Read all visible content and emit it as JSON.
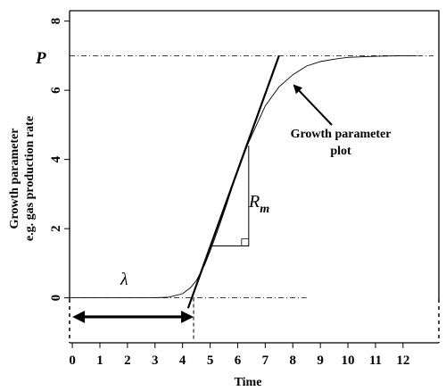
{
  "chart_data": {
    "type": "line",
    "xlabel": "Time",
    "ylabel_line1": "Growth parameter",
    "ylabel_line2": "e.g. gas production rate",
    "xlim": [
      -0.1,
      13.3
    ],
    "ylim": [
      -1.3,
      8.3
    ],
    "xticks": [
      0,
      1,
      2,
      3,
      4,
      5,
      6,
      7,
      8,
      9,
      10,
      11,
      12
    ],
    "yticks": [
      0,
      2,
      4,
      6,
      8
    ],
    "series": [
      {
        "x": [
          0,
          1,
          2,
          3,
          3.5,
          4,
          4.3,
          4.5,
          4.8,
          5,
          5.3,
          5.6,
          6,
          6.4,
          7,
          7.5,
          8,
          8.5,
          9,
          9.5,
          10,
          11,
          12,
          12.5
        ],
        "y": [
          0,
          0,
          0,
          0.002,
          0.02,
          0.12,
          0.3,
          0.5,
          0.95,
          1.35,
          2.0,
          2.7,
          3.7,
          4.5,
          5.55,
          6.1,
          6.45,
          6.7,
          6.83,
          6.9,
          6.95,
          6.98,
          7.0,
          7.0
        ]
      }
    ],
    "tangent": {
      "x": [
        4.2,
        7.5
      ],
      "y": [
        -0.3,
        7.0
      ]
    },
    "lag_end": 4.4,
    "plateau": 7,
    "slope_triangle": {
      "x0": 5.0,
      "x1": 6.4,
      "y0": 1.5,
      "y1": 4.4
    },
    "annotations": {
      "plateau_label": "P",
      "lag_label": "λ",
      "rate_label": "R",
      "rate_subscript": "m",
      "curve_label_line1": "Growth parameter",
      "curve_label_line2": "plot"
    }
  }
}
